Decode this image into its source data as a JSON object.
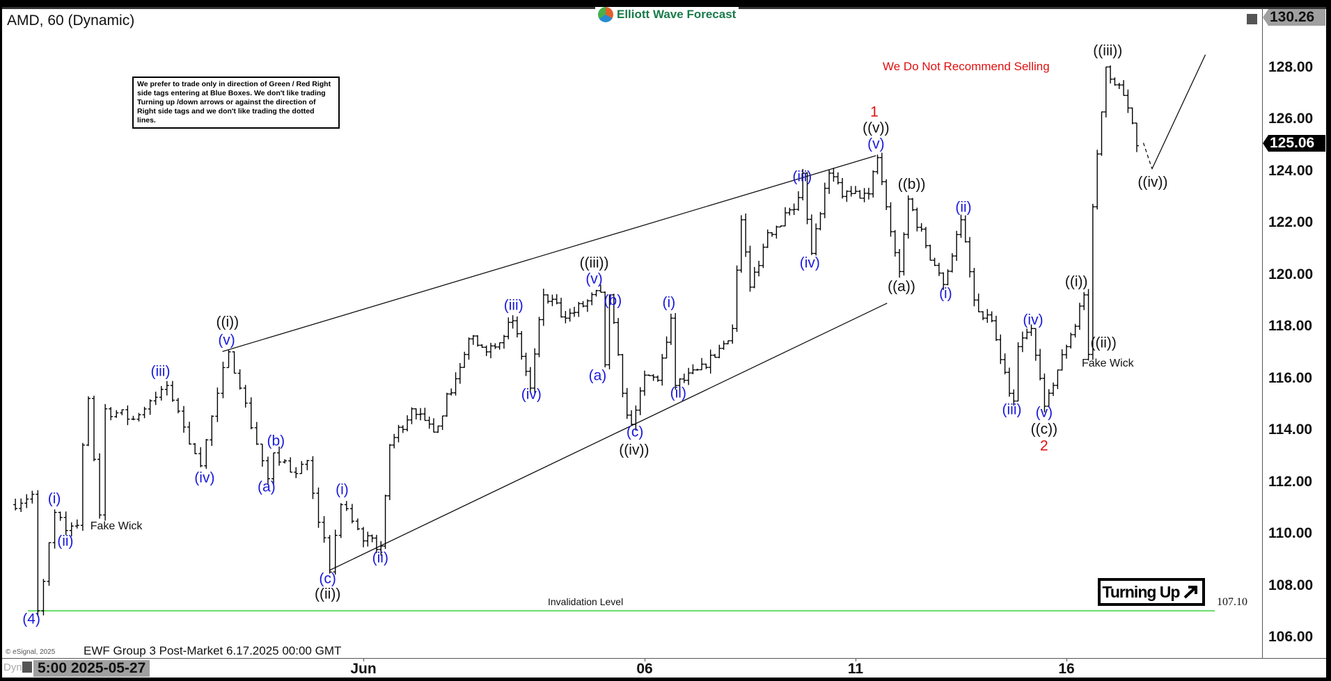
{
  "header": {
    "title": "AMD, 60 (Dynamic)",
    "logo_text": "Elliott Wave Forecast"
  },
  "note": "We prefer to trade only in direction of Green / Red Right side tags entering at Blue Boxes. We don't like trading Turning up /down arrows or against the direction of Right side tags and we don't like trading the dotted lines.",
  "warning": "We Do Not Recommend Selling",
  "turning_label": "Turning Up",
  "turning_icon": "arrow-up-right-icon",
  "invalidation": {
    "label": "Invalidation Level",
    "value": "107.10",
    "color": "#66dd66"
  },
  "footer": {
    "copyright": "© eSignal, 2025",
    "caption": "EWF Group 3 Post-Market 6.17.2025 00:00 GMT",
    "dyn": "Dyn",
    "cursor_time": "5:00 2025-05-27"
  },
  "colors": {
    "wave_blue": "#1a1adc",
    "wave_black": "#111111",
    "wave_red": "#e01010",
    "last_tag": "#000000",
    "high_tag": "#a0a0a0"
  },
  "chart_data": {
    "type": "ohlc",
    "symbol": "AMD",
    "interval": "60",
    "ylim": [
      105.4,
      130.26
    ],
    "y_ticks": [
      "128.00",
      "126.00",
      "124.00",
      "122.00",
      "120.00",
      "118.00",
      "116.00",
      "114.00",
      "112.00",
      "110.00",
      "108.00",
      "106.00"
    ],
    "high_tag": "130.26",
    "last_price": "125.06",
    "x_ticks": [
      {
        "label": "Jun",
        "date": "2025-06-02"
      },
      {
        "label": "06",
        "date": "2025-06-06"
      },
      {
        "label": "11",
        "date": "2025-06-11"
      },
      {
        "label": "16",
        "date": "2025-06-16"
      }
    ],
    "price_path": [
      [
        "2025-05-27 05:00",
        111.2
      ],
      [
        "2025-05-27 09:00",
        111.6
      ],
      [
        "2025-05-27 10:00",
        107.1
      ],
      [
        "2025-05-27 13:00",
        110.9
      ],
      [
        "2025-05-27 15:00",
        110.2
      ],
      [
        "2025-05-27 17:00",
        110.4
      ],
      [
        "2025-05-27 18:00",
        113.5
      ],
      [
        "2025-05-27 19:00",
        115.3
      ],
      [
        "2025-05-28 05:00",
        110.8
      ],
      [
        "2025-05-28 06:00",
        114.9
      ],
      [
        "2025-05-28 11:00",
        114.5
      ],
      [
        "2025-05-28 17:00",
        115.8
      ],
      [
        "2025-05-29 07:00",
        112.7
      ],
      [
        "2025-05-29 10:00",
        115.5
      ],
      [
        "2025-05-29 12:00",
        117.1
      ],
      [
        "2025-05-29 14:00",
        115.7
      ],
      [
        "2025-05-29 19:00",
        112.2
      ],
      [
        "2025-05-30 04:00",
        113.2
      ],
      [
        "2025-05-30 08:00",
        112.4
      ],
      [
        "2025-05-30 10:00",
        112.9
      ],
      [
        "2025-05-30 14:00",
        108.6
      ],
      [
        "2025-05-30 16:00",
        111.2
      ],
      [
        "2025-06-02 04:00",
        109.8
      ],
      [
        "2025-06-02 08:00",
        109.6
      ],
      [
        "2025-06-02 10:00",
        113.5
      ],
      [
        "2025-06-02 15:00",
        114.9
      ],
      [
        "2025-06-03 04:00",
        114.0
      ],
      [
        "2025-06-03 10:00",
        116.5
      ],
      [
        "2025-06-03 12:00",
        117.6
      ],
      [
        "2025-06-03 16:00",
        117.1
      ],
      [
        "2025-06-04 06:00",
        118.3
      ],
      [
        "2025-06-04 10:00",
        115.7
      ],
      [
        "2025-06-04 13:00",
        119.3
      ],
      [
        "2025-06-04 18:00",
        118.4
      ],
      [
        "2025-06-05 10:00",
        119.4
      ],
      [
        "2025-06-05 11:00",
        116.6
      ],
      [
        "2025-06-05 12:00",
        119.3
      ],
      [
        "2025-06-05 15:00",
        115.5
      ],
      [
        "2025-06-05 17:00",
        114.3
      ],
      [
        "2025-06-06 04:00",
        116.2
      ],
      [
        "2025-06-06 07:00",
        116.0
      ],
      [
        "2025-06-06 10:00",
        118.4
      ],
      [
        "2025-06-06 11:00",
        115.8
      ],
      [
        "2025-06-06 18:00",
        116.5
      ],
      [
        "2025-06-09 08:00",
        118.0
      ],
      [
        "2025-06-09 10:00",
        122.2
      ],
      [
        "2025-06-09 12:00",
        119.6
      ],
      [
        "2025-06-09 16:00",
        121.7
      ],
      [
        "2025-06-10 06:00",
        122.6
      ],
      [
        "2025-06-10 08:00",
        124.0
      ],
      [
        "2025-06-10 10:00",
        120.9
      ],
      [
        "2025-06-10 14:00",
        124.0
      ],
      [
        "2025-06-10 17:00",
        123.1
      ],
      [
        "2025-06-11 07:00",
        123.2
      ],
      [
        "2025-06-11 09:00",
        124.6
      ],
      [
        "2025-06-11 11:00",
        122.7
      ],
      [
        "2025-06-11 14:00",
        120.2
      ],
      [
        "2025-06-11 16:00",
        123.0
      ],
      [
        "2025-06-12 04:00",
        121.2
      ],
      [
        "2025-06-12 08:00",
        119.7
      ],
      [
        "2025-06-12 12:00",
        122.2
      ],
      [
        "2025-06-12 15:00",
        119.1
      ],
      [
        "2025-06-12 17:00",
        118.4
      ],
      [
        "2025-06-12 19:00",
        118.3
      ],
      [
        "2025-06-13 05:00",
        116.8
      ],
      [
        "2025-06-13 08:00",
        115.2
      ],
      [
        "2025-06-13 09:00",
        117.3
      ],
      [
        "2025-06-13 12:00",
        118.0
      ],
      [
        "2025-06-13 15:00",
        115.0
      ],
      [
        "2025-06-13 18:00",
        116.4
      ],
      [
        "2025-06-16 04:00",
        117.3
      ],
      [
        "2025-06-16 08:00",
        119.3
      ],
      [
        "2025-06-16 09:00",
        117.0
      ],
      [
        "2025-06-16 10:00",
        122.7
      ],
      [
        "2025-06-16 13:00",
        128.1
      ],
      [
        "2025-06-16 17:00",
        127.0
      ],
      [
        "2025-06-17 04:00",
        125.06
      ]
    ],
    "wave_labels": [
      {
        "text": "(4)",
        "color": "blue"
      },
      {
        "text": "(i)",
        "color": "blue"
      },
      {
        "text": "(ii)",
        "color": "blue"
      },
      {
        "text": "Fake Wick",
        "color": "black"
      },
      {
        "text": "(iii)",
        "color": "blue"
      },
      {
        "text": "(iv)",
        "color": "blue"
      },
      {
        "text": "((i))",
        "color": "black"
      },
      {
        "text": "(v)",
        "color": "blue"
      },
      {
        "text": "(b)",
        "color": "blue"
      },
      {
        "text": "(a)",
        "color": "blue"
      },
      {
        "text": "(i)",
        "color": "blue"
      },
      {
        "text": "(c)",
        "color": "blue"
      },
      {
        "text": "((ii))",
        "color": "black"
      },
      {
        "text": "(ii)",
        "color": "blue"
      },
      {
        "text": "(iii)",
        "color": "blue"
      },
      {
        "text": "(iv)",
        "color": "blue"
      },
      {
        "text": "((iii))",
        "color": "black"
      },
      {
        "text": "(v)",
        "color": "blue"
      },
      {
        "text": "(b)",
        "color": "blue"
      },
      {
        "text": "(a)",
        "color": "blue"
      },
      {
        "text": "(c)",
        "color": "blue"
      },
      {
        "text": "((iv))",
        "color": "black"
      },
      {
        "text": "(i)",
        "color": "blue"
      },
      {
        "text": "(ii)",
        "color": "blue"
      },
      {
        "text": "(iii)",
        "color": "blue"
      },
      {
        "text": "(iv)",
        "color": "blue"
      },
      {
        "text": "1",
        "color": "red"
      },
      {
        "text": "((v))",
        "color": "black"
      },
      {
        "text": "(v)",
        "color": "blue"
      },
      {
        "text": "((b))",
        "color": "black"
      },
      {
        "text": "((a))",
        "color": "black"
      },
      {
        "text": "(ii)",
        "color": "blue"
      },
      {
        "text": "(i)",
        "color": "blue"
      },
      {
        "text": "(iii)",
        "color": "blue"
      },
      {
        "text": "(iv)",
        "color": "blue"
      },
      {
        "text": "(v)",
        "color": "blue"
      },
      {
        "text": "((c))",
        "color": "black"
      },
      {
        "text": "2",
        "color": "red"
      },
      {
        "text": "((i))",
        "color": "black"
      },
      {
        "text": "((ii))",
        "color": "black"
      },
      {
        "text": "Fake Wick",
        "color": "black"
      },
      {
        "text": "((iii))",
        "color": "black"
      },
      {
        "text": "((iv))",
        "color": "black"
      }
    ]
  }
}
